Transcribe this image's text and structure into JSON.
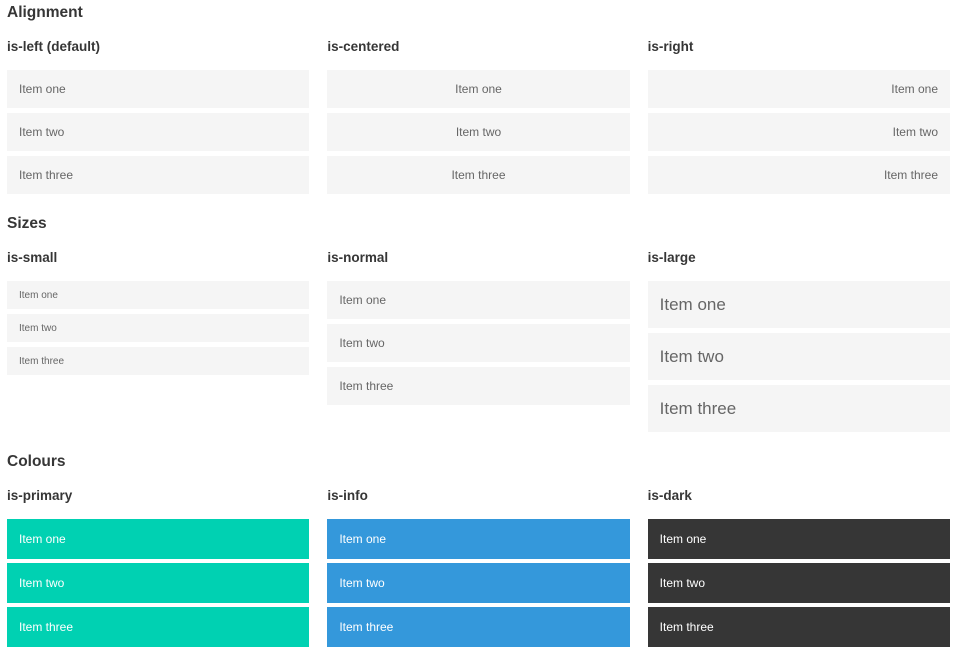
{
  "sections": [
    {
      "id": "alignment",
      "title": "Alignment",
      "columns": [
        {
          "heading": "is-left (default)",
          "align": "left",
          "size": "normal",
          "variant": "light",
          "items": [
            "Item one",
            "Item two",
            "Item three"
          ]
        },
        {
          "heading": "is-centered",
          "align": "center",
          "size": "normal",
          "variant": "light",
          "items": [
            "Item one",
            "Item two",
            "Item three"
          ]
        },
        {
          "heading": "is-right",
          "align": "right",
          "size": "normal",
          "variant": "light",
          "items": [
            "Item one",
            "Item two",
            "Item three"
          ]
        }
      ]
    },
    {
      "id": "sizes",
      "title": "Sizes",
      "columns": [
        {
          "heading": "is-small",
          "align": "left",
          "size": "small",
          "variant": "light",
          "items": [
            "Item one",
            "Item two",
            "Item three"
          ]
        },
        {
          "heading": "is-normal",
          "align": "left",
          "size": "normal",
          "variant": "light",
          "items": [
            "Item one",
            "Item two",
            "Item three"
          ]
        },
        {
          "heading": "is-large",
          "align": "left",
          "size": "large",
          "variant": "light",
          "items": [
            "Item one",
            "Item two",
            "Item three"
          ]
        }
      ]
    },
    {
      "id": "colours",
      "title": "Colours",
      "columns": [
        {
          "heading": "is-primary",
          "align": "left",
          "size": "colour",
          "variant": "primary",
          "items": [
            "Item one",
            "Item two",
            "Item three"
          ]
        },
        {
          "heading": "is-info",
          "align": "left",
          "size": "colour",
          "variant": "info",
          "items": [
            "Item one",
            "Item two",
            "Item three"
          ]
        },
        {
          "heading": "is-dark",
          "align": "left",
          "size": "colour",
          "variant": "dark",
          "items": [
            "Item one",
            "Item two",
            "Item three"
          ]
        }
      ]
    }
  ],
  "colors": {
    "primary": "#00d1b2",
    "info": "#3498db",
    "dark": "#363636",
    "item_background": "#f5f5f5",
    "item_text": "#666666",
    "heading_text": "#363636",
    "colour_item_text": "#ffffff"
  }
}
